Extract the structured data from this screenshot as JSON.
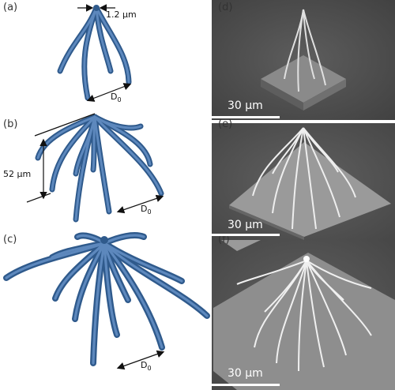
{
  "panels": {
    "a": {
      "label": "(a)",
      "tip_diameter": "1.2 µm",
      "base_label": "D",
      "base_sub": "0"
    },
    "b": {
      "label": "(b)",
      "height_label": "52 µm",
      "base_label": "D",
      "base_sub": "0"
    },
    "c": {
      "label": "(c)",
      "base_label": "D",
      "base_sub": "0"
    },
    "d": {
      "label": "(d)",
      "scale": "30 µm"
    },
    "e": {
      "label": "(e)",
      "scale": "30 µm"
    },
    "f": {
      "label": "(f)",
      "scale": "30 µm"
    }
  },
  "colors": {
    "strut": "#3f6ea8",
    "strut_light": "#6b95c8",
    "sem_bg": "#4a4a4a"
  },
  "icons": [
    "arrow-icon"
  ]
}
